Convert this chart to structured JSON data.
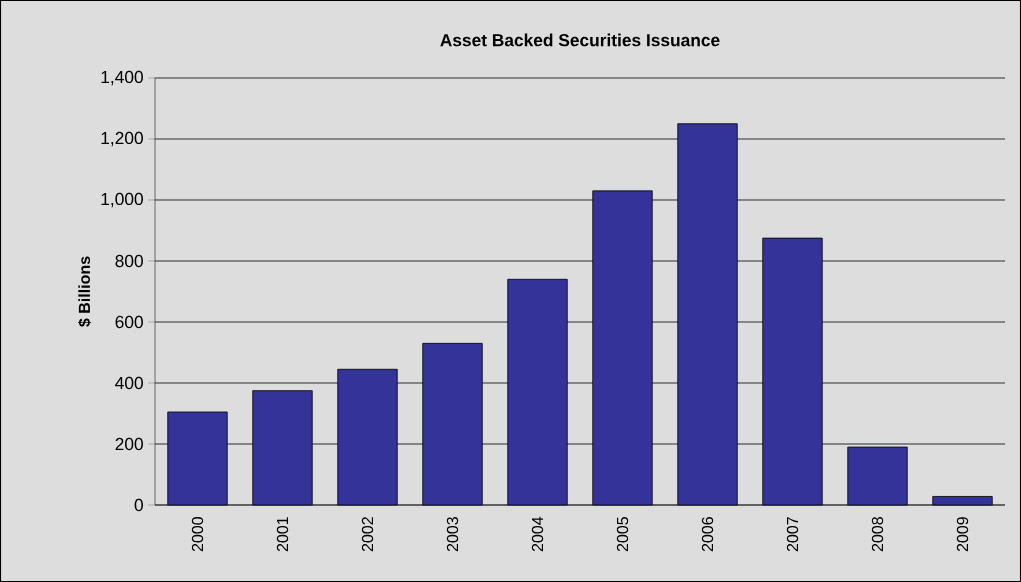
{
  "chart_data": {
    "type": "bar",
    "title": "Asset Backed Securities Issuance",
    "ylabel": "$ Billions",
    "categories": [
      "2000",
      "2001",
      "2002",
      "2003",
      "2004",
      "2005",
      "2006",
      "2007",
      "2008",
      "2009"
    ],
    "values": [
      305,
      375,
      445,
      530,
      740,
      1030,
      1250,
      875,
      190,
      28
    ],
    "color": "#333399",
    "ylim": [
      0,
      1400
    ],
    "yticks": [
      0,
      200,
      400,
      600,
      800,
      {
        "value": 1000,
        "label": "1,000"
      },
      {
        "value": 1200,
        "label": "1,200"
      },
      {
        "value": 1400,
        "label": "1,400"
      }
    ],
    "grid": "y"
  }
}
